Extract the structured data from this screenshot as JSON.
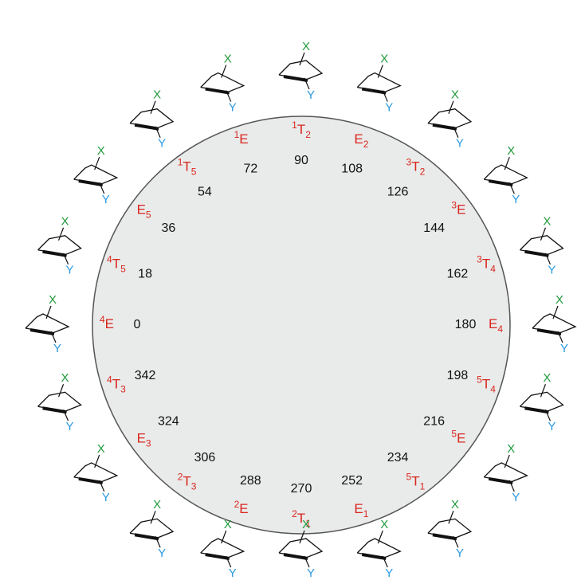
{
  "wheel": [
    {
      "angle": 0,
      "label": {
        "sup": "4",
        "base": "E"
      },
      "substituents": [
        "X",
        "Y"
      ]
    },
    {
      "angle": 18,
      "label": {
        "sup": "4",
        "base": "T",
        "sub": "5"
      },
      "substituents": [
        "X",
        "Y"
      ]
    },
    {
      "angle": 36,
      "label": {
        "base": "E",
        "sub": "5"
      },
      "substituents": [
        "X",
        "Y"
      ]
    },
    {
      "angle": 54,
      "label": {
        "sup": "1",
        "base": "T",
        "sub": "5"
      },
      "substituents": [
        "X",
        "Y"
      ]
    },
    {
      "angle": 72,
      "label": {
        "sup": "1",
        "base": "E"
      },
      "substituents": [
        "X",
        "Y"
      ]
    },
    {
      "angle": 90,
      "label": {
        "sup": "1",
        "base": "T",
        "sub": "2"
      },
      "substituents": [
        "X",
        "Y"
      ]
    },
    {
      "angle": 108,
      "label": {
        "base": "E",
        "sub": "2"
      },
      "substituents": [
        "X",
        "Y"
      ]
    },
    {
      "angle": 126,
      "label": {
        "sup": "3",
        "base": "T",
        "sub": "2"
      },
      "substituents": [
        "X",
        "Y"
      ]
    },
    {
      "angle": 144,
      "label": {
        "sup": "3",
        "base": "E"
      },
      "substituents": [
        "X",
        "Y"
      ]
    },
    {
      "angle": 162,
      "label": {
        "sup": "3",
        "base": "T",
        "sub": "4"
      },
      "substituents": [
        "X",
        "Y"
      ]
    },
    {
      "angle": 180,
      "label": {
        "base": "E",
        "sub": "4"
      },
      "substituents": [
        "X",
        "Y"
      ]
    },
    {
      "angle": 198,
      "label": {
        "sup": "5",
        "base": "T",
        "sub": "4"
      },
      "substituents": [
        "X",
        "Y"
      ]
    },
    {
      "angle": 216,
      "label": {
        "sup": "5",
        "base": "E"
      },
      "substituents": [
        "X",
        "Y"
      ]
    },
    {
      "angle": 234,
      "label": {
        "sup": "5",
        "base": "T",
        "sub": "1"
      },
      "substituents": [
        "X",
        "Y"
      ]
    },
    {
      "angle": 252,
      "label": {
        "base": "E",
        "sub": "1"
      },
      "substituents": [
        "X",
        "Y"
      ]
    },
    {
      "angle": 270,
      "label": {
        "sup": "2",
        "base": "T",
        "sub": "1"
      },
      "substituents": [
        "X",
        "Y"
      ]
    },
    {
      "angle": 288,
      "label": {
        "sup": "2",
        "base": "E"
      },
      "substituents": [
        "X",
        "Y"
      ]
    },
    {
      "angle": 306,
      "label": {
        "sup": "2",
        "base": "T",
        "sub": "3"
      },
      "substituents": [
        "X",
        "Y"
      ]
    },
    {
      "angle": 324,
      "label": {
        "base": "E",
        "sub": "3"
      },
      "substituents": [
        "X",
        "Y"
      ]
    },
    {
      "angle": 342,
      "label": {
        "sup": "4",
        "base": "T",
        "sub": "3"
      },
      "substituents": [
        "X",
        "Y"
      ]
    }
  ]
}
